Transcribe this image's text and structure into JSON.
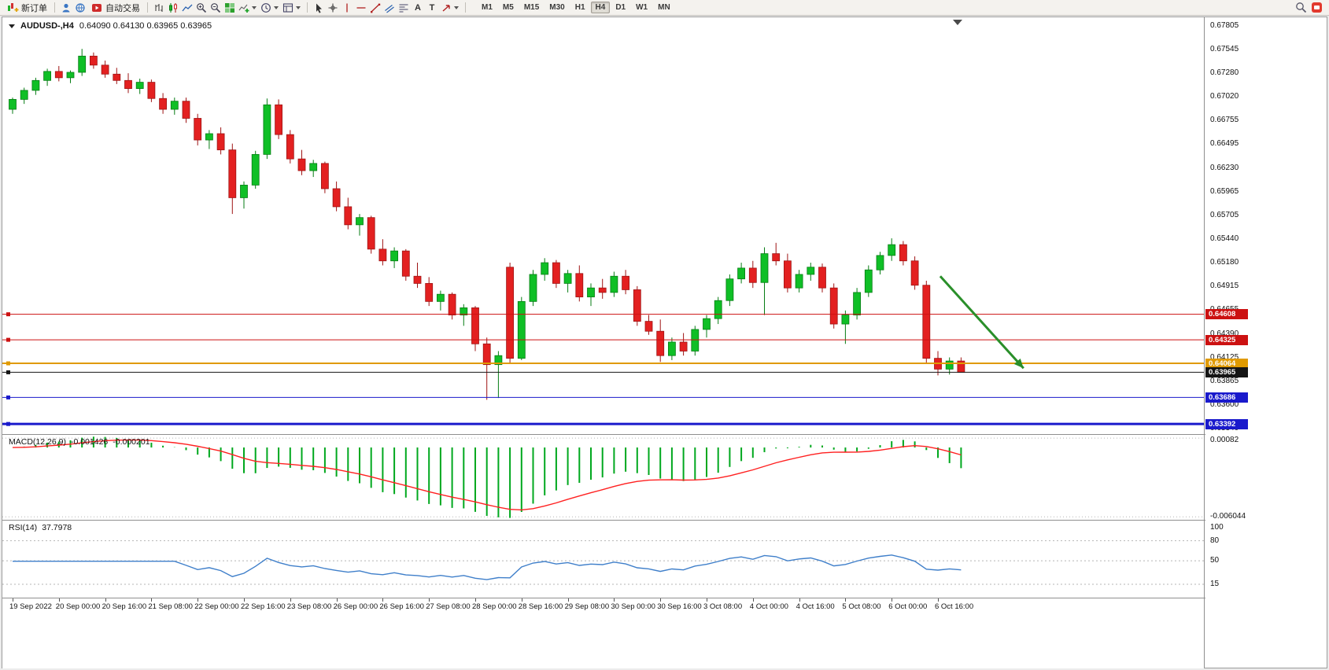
{
  "toolbar": {
    "new_order": "新订单",
    "auto_trading": "自动交易",
    "timeframes": [
      "M1",
      "M5",
      "M15",
      "M30",
      "H1",
      "H4",
      "D1",
      "W1",
      "MN"
    ],
    "active_timeframe": "H4"
  },
  "icons": {
    "text_tool": "A",
    "label_tool": "T"
  },
  "chart_header": {
    "symbol": "AUDUSD-,H4",
    "ohlc": "0.64090 0.64130 0.63965 0.63965"
  },
  "price_scale_labels": [
    "0.67805",
    "0.67545",
    "0.67280",
    "0.67020",
    "0.66755",
    "0.66495",
    "0.66230",
    "0.65965",
    "0.65705",
    "0.65440",
    "0.65180",
    "0.64915",
    "0.64655",
    "0.64390",
    "0.64125",
    "0.63865",
    "0.63600",
    "0.63340"
  ],
  "levels": [
    {
      "price": 0.64608,
      "label": "0.64608",
      "color": "#cc1111",
      "width": 1
    },
    {
      "price": 0.64325,
      "label": "0.64325",
      "color": "#cc1111",
      "width": 1
    },
    {
      "price": 0.64064,
      "label": "0.64064",
      "color": "#e09a00",
      "width": 2
    },
    {
      "price": 0.63965,
      "label": "0.63965",
      "color": "#151515",
      "width": 1
    },
    {
      "price": 0.63686,
      "label": "0.63686",
      "color": "#1a1acc",
      "width": 1
    },
    {
      "price": 0.63392,
      "label": "0.63392",
      "color": "#1a1acc",
      "width": 3
    }
  ],
  "chart_data": {
    "type": "candlestick",
    "title": "AUDUSD- H4",
    "price_range_visible": [
      0.6328,
      0.679
    ],
    "label_interval": 4,
    "x_labels": [
      "19 Sep 2022",
      "20 Sep 00:00",
      "20 Sep 16:00",
      "21 Sep 08:00",
      "22 Sep 00:00",
      "22 Sep 16:00",
      "23 Sep 08:00",
      "26 Sep 00:00",
      "26 Sep 16:00",
      "27 Sep 08:00",
      "28 Sep 00:00",
      "28 Sep 16:00",
      "29 Sep 08:00",
      "30 Sep 00:00",
      "30 Sep 16:00",
      "3 Oct 08:00",
      "4 Oct 00:00",
      "4 Oct 16:00",
      "5 Oct 08:00",
      "6 Oct 00:00",
      "6 Oct 16:00"
    ],
    "candles_ohlc": [
      [
        0.6688,
        0.6701,
        0.6683,
        0.6699
      ],
      [
        0.6699,
        0.6712,
        0.6694,
        0.6709
      ],
      [
        0.6709,
        0.6723,
        0.6704,
        0.672
      ],
      [
        0.672,
        0.6733,
        0.6714,
        0.673
      ],
      [
        0.673,
        0.6736,
        0.6719,
        0.6723
      ],
      [
        0.6723,
        0.6731,
        0.6717,
        0.6729
      ],
      [
        0.6729,
        0.6755,
        0.6725,
        0.6747
      ],
      [
        0.6747,
        0.6751,
        0.6733,
        0.6737
      ],
      [
        0.6737,
        0.6742,
        0.6723,
        0.6727
      ],
      [
        0.6727,
        0.6734,
        0.6716,
        0.672
      ],
      [
        0.672,
        0.6728,
        0.6706,
        0.6711
      ],
      [
        0.6711,
        0.6722,
        0.6705,
        0.6718
      ],
      [
        0.6718,
        0.6721,
        0.6696,
        0.67
      ],
      [
        0.67,
        0.6706,
        0.6683,
        0.6688
      ],
      [
        0.6688,
        0.6701,
        0.6682,
        0.6697
      ],
      [
        0.6697,
        0.6701,
        0.6673,
        0.6678
      ],
      [
        0.6678,
        0.6683,
        0.6648,
        0.6654
      ],
      [
        0.6654,
        0.6665,
        0.6644,
        0.6661
      ],
      [
        0.6661,
        0.6668,
        0.6638,
        0.6643
      ],
      [
        0.6643,
        0.665,
        0.6572,
        0.659
      ],
      [
        0.659,
        0.6608,
        0.6578,
        0.6604
      ],
      [
        0.6604,
        0.6642,
        0.66,
        0.6638
      ],
      [
        0.6638,
        0.67,
        0.6633,
        0.6693
      ],
      [
        0.6693,
        0.6699,
        0.6655,
        0.666
      ],
      [
        0.666,
        0.6665,
        0.6628,
        0.6633
      ],
      [
        0.6633,
        0.6643,
        0.6615,
        0.662
      ],
      [
        0.662,
        0.6632,
        0.6613,
        0.6628
      ],
      [
        0.6628,
        0.663,
        0.6595,
        0.66
      ],
      [
        0.66,
        0.6608,
        0.6575,
        0.658
      ],
      [
        0.658,
        0.659,
        0.6555,
        0.656
      ],
      [
        0.656,
        0.6572,
        0.6548,
        0.6568
      ],
      [
        0.6568,
        0.657,
        0.6528,
        0.6533
      ],
      [
        0.6533,
        0.6544,
        0.6515,
        0.652
      ],
      [
        0.652,
        0.6535,
        0.6512,
        0.6531
      ],
      [
        0.6531,
        0.6533,
        0.6498,
        0.6503
      ],
      [
        0.6503,
        0.6518,
        0.649,
        0.6495
      ],
      [
        0.6495,
        0.6502,
        0.647,
        0.6475
      ],
      [
        0.6475,
        0.6487,
        0.6465,
        0.6483
      ],
      [
        0.6483,
        0.6485,
        0.6455,
        0.646
      ],
      [
        0.646,
        0.6472,
        0.6448,
        0.6468
      ],
      [
        0.6468,
        0.647,
        0.642,
        0.6428
      ],
      [
        0.6428,
        0.6435,
        0.6366,
        0.6405
      ],
      [
        0.6405,
        0.642,
        0.6368,
        0.6415
      ],
      [
        0.6513,
        0.6518,
        0.6406,
        0.6412
      ],
      [
        0.6412,
        0.648,
        0.641,
        0.6475
      ],
      [
        0.6475,
        0.651,
        0.647,
        0.6505
      ],
      [
        0.6505,
        0.6523,
        0.6498,
        0.6518
      ],
      [
        0.6518,
        0.6521,
        0.649,
        0.6495
      ],
      [
        0.6495,
        0.651,
        0.6485,
        0.6506
      ],
      [
        0.6506,
        0.6515,
        0.6475,
        0.648
      ],
      [
        0.648,
        0.6495,
        0.647,
        0.649
      ],
      [
        0.649,
        0.65,
        0.6478,
        0.6485
      ],
      [
        0.6485,
        0.6508,
        0.648,
        0.6503
      ],
      [
        0.6503,
        0.651,
        0.6483,
        0.6488
      ],
      [
        0.6488,
        0.6492,
        0.6448,
        0.6453
      ],
      [
        0.6453,
        0.646,
        0.6438,
        0.6442
      ],
      [
        0.6442,
        0.6455,
        0.6408,
        0.6415
      ],
      [
        0.6415,
        0.6435,
        0.641,
        0.643
      ],
      [
        0.643,
        0.644,
        0.6415,
        0.642
      ],
      [
        0.642,
        0.6448,
        0.6415,
        0.6444
      ],
      [
        0.6444,
        0.646,
        0.6435,
        0.6456
      ],
      [
        0.6456,
        0.648,
        0.645,
        0.6476
      ],
      [
        0.6476,
        0.6505,
        0.647,
        0.65
      ],
      [
        0.65,
        0.6518,
        0.6495,
        0.6512
      ],
      [
        0.6512,
        0.652,
        0.649,
        0.6496
      ],
      [
        0.6496,
        0.6535,
        0.646,
        0.6528
      ],
      [
        0.6528,
        0.654,
        0.6515,
        0.652
      ],
      [
        0.652,
        0.6528,
        0.6485,
        0.649
      ],
      [
        0.649,
        0.651,
        0.6485,
        0.6505
      ],
      [
        0.6505,
        0.6518,
        0.6498,
        0.6513
      ],
      [
        0.6513,
        0.6517,
        0.6485,
        0.649
      ],
      [
        0.649,
        0.6495,
        0.6445,
        0.645
      ],
      [
        0.645,
        0.6465,
        0.6428,
        0.646
      ],
      [
        0.646,
        0.649,
        0.6455,
        0.6485
      ],
      [
        0.6485,
        0.6515,
        0.648,
        0.651
      ],
      [
        0.651,
        0.653,
        0.6505,
        0.6526
      ],
      [
        0.6526,
        0.6545,
        0.652,
        0.6538
      ],
      [
        0.6538,
        0.6542,
        0.6515,
        0.652
      ],
      [
        0.652,
        0.6525,
        0.6488,
        0.6493
      ],
      [
        0.6493,
        0.6498,
        0.6406,
        0.6412
      ],
      [
        0.6412,
        0.642,
        0.6393,
        0.64
      ],
      [
        0.64,
        0.6413,
        0.6394,
        0.6409
      ],
      [
        0.6409,
        0.6413,
        0.63965,
        0.63965
      ]
    ],
    "annotations": {
      "trend_arrow": {
        "from_index": 80.2,
        "from_price": 0.6503,
        "to_index": 87.4,
        "to_price": 0.6401,
        "color": "#2a8f2a",
        "width": 3
      },
      "shift_marker_index": 81.7
    },
    "colors": {
      "bull": "#0fbf26",
      "bull_border": "#077d14",
      "bear": "#e32020",
      "bear_border": "#9e1414"
    }
  },
  "macd_panel": {
    "name": "MACD(12,26,9)",
    "value": "-0.001426",
    "signal_value": "-0.000201",
    "scale_max_label": "0.00082",
    "scale_min_label": "-0.006044",
    "scale_max": 0.00082,
    "scale_min": -0.006044,
    "histogram_color": "#00a81e",
    "signal_color": "#ff2020"
  },
  "rsi_panel": {
    "name": "RSI(14)",
    "value": "37.7978",
    "scale_levels": [
      100,
      80,
      50,
      15
    ],
    "line_color": "#3f7fca"
  }
}
